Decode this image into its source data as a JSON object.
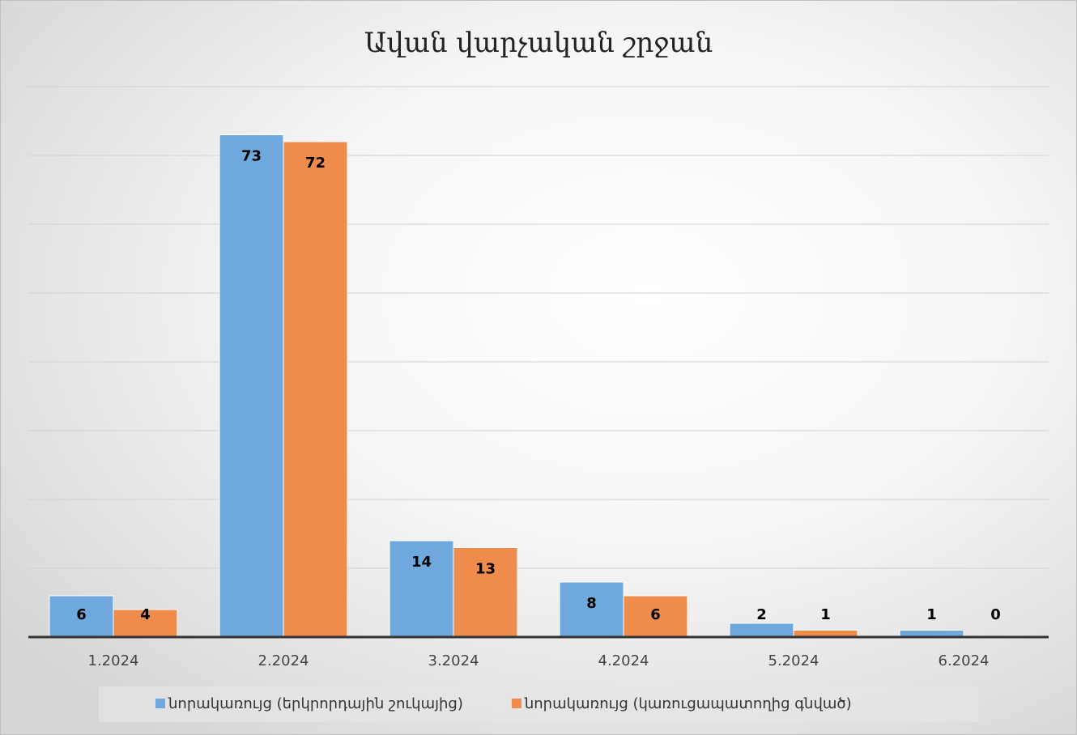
{
  "chart_data": {
    "type": "bar",
    "title": "Ավան վարչական շրջան",
    "categories": [
      "1.2024",
      "2.2024",
      "3.2024",
      "4.2024",
      "5.2024",
      "6.2024"
    ],
    "series": [
      {
        "name": "նորակառույց (երկրորդային շուկայից)",
        "color": "#6fa8dc",
        "values": [
          6,
          73,
          14,
          8,
          2,
          1
        ]
      },
      {
        "name": "նորակառույց (կառուցապատողից գնված)",
        "color": "#ef8c4c",
        "values": [
          4,
          72,
          13,
          6,
          1,
          0
        ]
      }
    ],
    "ylim": [
      0,
      80
    ],
    "yticks": [
      0,
      10,
      20,
      30,
      40,
      50,
      60,
      70,
      80
    ],
    "grid": true,
    "legend": "bottom"
  }
}
